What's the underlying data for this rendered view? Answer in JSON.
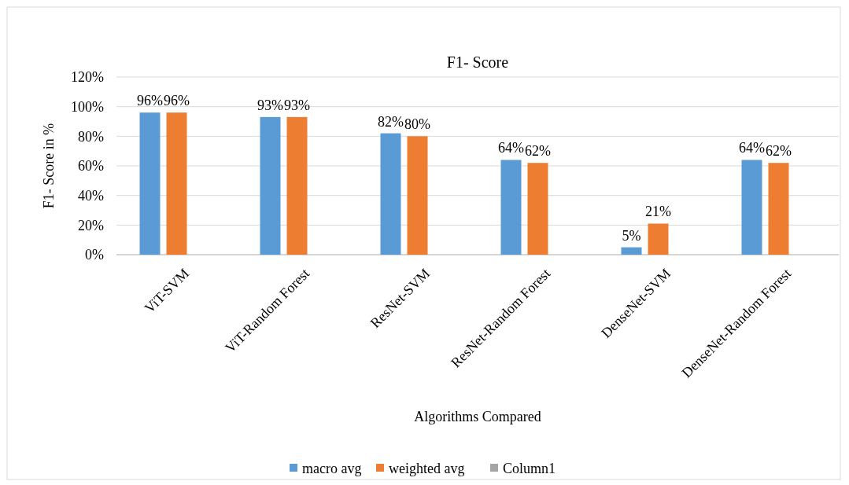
{
  "chart_data": {
    "type": "bar",
    "title": "F1- Score",
    "xlabel": "Algorithms Compared",
    "ylabel": "F1- Score in %",
    "categories": [
      "ViT-SVM",
      "ViT-Random Forest",
      "ResNet-SVM",
      "ResNet-Random Forest",
      "DenseNet-SVM",
      "DenseNet-Random Forest"
    ],
    "series": [
      {
        "name": "macro avg",
        "color": "#5b9bd5",
        "values": [
          96,
          93,
          82,
          64,
          5,
          64
        ],
        "value_labels": [
          "96%",
          "93%",
          "82%",
          "64%",
          "5%",
          "64%"
        ]
      },
      {
        "name": "weighted avg",
        "color": "#ed7d31",
        "values": [
          96,
          93,
          80,
          62,
          21,
          62
        ],
        "value_labels": [
          "96%",
          "93%",
          "80%",
          "62%",
          "21%",
          "62%"
        ]
      },
      {
        "name": "Column1",
        "color": "#a5a5a5",
        "values": [
          null,
          null,
          null,
          null,
          null,
          null
        ]
      }
    ],
    "ylim": [
      0,
      120
    ],
    "yticks": [
      {
        "value": 0,
        "label": "0%"
      },
      {
        "value": 20,
        "label": "20%"
      },
      {
        "value": 40,
        "label": "40%"
      },
      {
        "value": 60,
        "label": "60%"
      },
      {
        "value": 80,
        "label": "80%"
      },
      {
        "value": 100,
        "label": "100%"
      },
      {
        "value": 120,
        "label": "120%"
      }
    ],
    "grid": "y",
    "legend": "bottom"
  }
}
